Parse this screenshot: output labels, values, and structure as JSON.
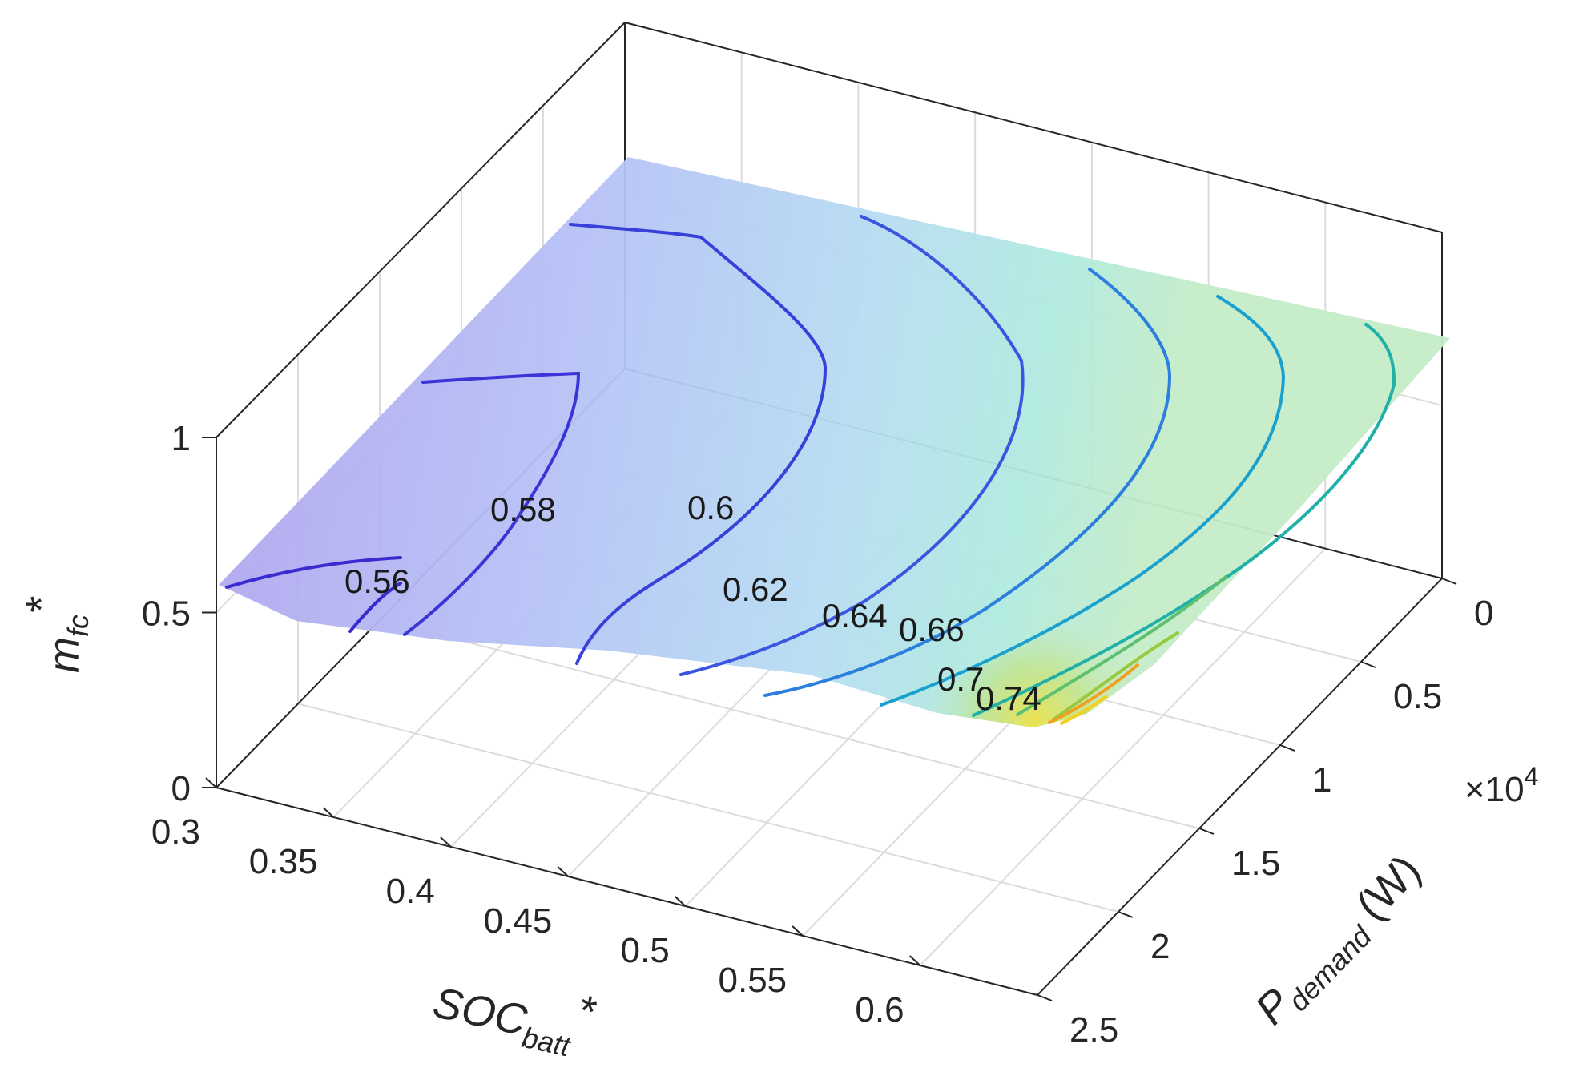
{
  "chart_data": {
    "type": "surface-contour-3d",
    "title": "",
    "xlabel": "SOC_batt*",
    "ylabel": "P_demand (W)",
    "zlabel": "m_fc*",
    "x_axis": {
      "label_main": "SOC",
      "label_sub": "batt",
      "label_sup": "*",
      "ticks": [
        0.3,
        0.35,
        0.4,
        0.45,
        0.5,
        0.55,
        0.6
      ],
      "tick_labels": [
        "0.3",
        "0.35",
        "0.4",
        "0.45",
        "0.5",
        "0.55",
        "0.6"
      ],
      "range": [
        0.3,
        0.65
      ]
    },
    "y_axis": {
      "label_main": "P",
      "label_sub": "demand",
      "label_unit": " (W)",
      "ticks": [
        0,
        0.5,
        1,
        1.5,
        2,
        2.5
      ],
      "tick_labels": [
        "0",
        "0.5",
        "1",
        "1.5",
        "2",
        "2.5"
      ],
      "range": [
        0,
        2.5
      ],
      "multiplier": "×10",
      "multiplier_exp": "4"
    },
    "z_axis": {
      "label_main": "m",
      "label_sub": "fc",
      "label_sup": "*",
      "ticks": [
        0,
        0.5,
        1
      ],
      "tick_labels": [
        "0",
        "0.5",
        "1"
      ],
      "range": [
        0,
        1
      ]
    },
    "contour_levels": [
      "0.56",
      "0.58",
      "0.6",
      "0.62",
      "0.64",
      "0.66",
      "0.7",
      "0.74"
    ],
    "colormap": [
      "#3b2fd0",
      "#2f5fe0",
      "#1f8fd8",
      "#10b0c0",
      "#20c0a0",
      "#5cc870",
      "#b8d040",
      "#f0a020",
      "#f8e020"
    ]
  }
}
